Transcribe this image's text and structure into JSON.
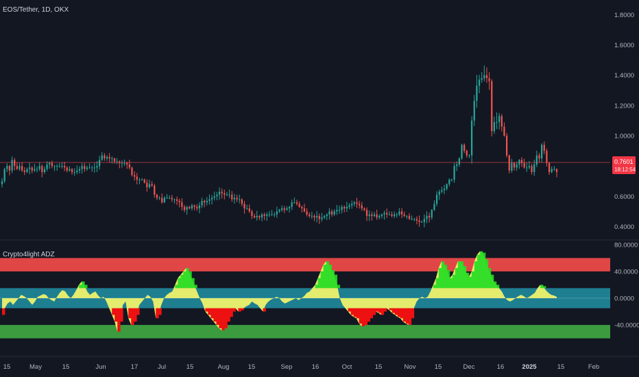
{
  "symbol": "EOS/Tether, 1D, OKX",
  "indicator_name": "Crypto4light ADZ",
  "last_price": {
    "value": "0.7601",
    "countdown": "18:12:54"
  },
  "colors": {
    "background": "#131722",
    "candle_up": "#26a69a",
    "candle_down": "#ef5350",
    "price_line": "#ef5350",
    "zone_red": "#e04646",
    "zone_teal": "#1e7f91",
    "zone_green": "#3c9b3f",
    "osc_yellow": "#eef26b",
    "osc_red": "#ee1111",
    "osc_green": "#22dd22"
  },
  "chart_data": [
    {
      "type": "candlestick",
      "title": "EOS/Tether, 1D, OKX",
      "y_ticks": [
        "1.8000",
        "1.6000",
        "1.4000",
        "1.2000",
        "1.0000",
        "0.8000",
        "0.6000",
        "0.4000"
      ],
      "ylim": [
        0.33,
        1.86
      ],
      "x_labels": [
        "15",
        "May",
        "15",
        "Jun",
        "17",
        "Jul",
        "15",
        "Aug",
        "15",
        "Sep",
        "16",
        "Oct",
        "15",
        "Nov",
        "15",
        "Dec",
        "16",
        "2025",
        "15",
        "Feb"
      ],
      "closes": [
        0.7,
        0.78,
        0.8,
        0.77,
        0.84,
        0.8,
        0.78,
        0.8,
        0.77,
        0.76,
        0.78,
        0.79,
        0.77,
        0.78,
        0.78,
        0.8,
        0.76,
        0.78,
        0.81,
        0.82,
        0.8,
        0.8,
        0.8,
        0.8,
        0.8,
        0.79,
        0.77,
        0.78,
        0.76,
        0.76,
        0.77,
        0.78,
        0.8,
        0.78,
        0.79,
        0.79,
        0.79,
        0.79,
        0.8,
        0.84,
        0.87,
        0.85,
        0.86,
        0.85,
        0.85,
        0.83,
        0.83,
        0.82,
        0.82,
        0.82,
        0.81,
        0.79,
        0.74,
        0.73,
        0.71,
        0.71,
        0.71,
        0.69,
        0.66,
        0.68,
        0.67,
        0.61,
        0.59,
        0.59,
        0.56,
        0.59,
        0.59,
        0.59,
        0.58,
        0.58,
        0.57,
        0.56,
        0.53,
        0.51,
        0.53,
        0.52,
        0.54,
        0.53,
        0.52,
        0.54,
        0.57,
        0.56,
        0.57,
        0.58,
        0.59,
        0.6,
        0.61,
        0.63,
        0.62,
        0.61,
        0.61,
        0.61,
        0.58,
        0.59,
        0.58,
        0.58,
        0.55,
        0.52,
        0.52,
        0.5,
        0.47,
        0.46,
        0.47,
        0.46,
        0.48,
        0.47,
        0.48,
        0.48,
        0.48,
        0.48,
        0.5,
        0.51,
        0.52,
        0.51,
        0.52,
        0.53,
        0.56,
        0.56,
        0.55,
        0.53,
        0.52,
        0.5,
        0.48,
        0.47,
        0.47,
        0.46,
        0.47,
        0.45,
        0.46,
        0.47,
        0.48,
        0.5,
        0.48,
        0.5,
        0.51,
        0.51,
        0.53,
        0.52,
        0.53,
        0.54,
        0.55,
        0.56,
        0.55,
        0.54,
        0.52,
        0.51,
        0.47,
        0.48,
        0.47,
        0.48,
        0.46,
        0.47,
        0.48,
        0.49,
        0.48,
        0.48,
        0.47,
        0.48,
        0.48,
        0.5,
        0.48,
        0.47,
        0.47,
        0.45,
        0.45,
        0.45,
        0.44,
        0.43,
        0.43,
        0.45,
        0.47,
        0.46,
        0.51,
        0.55,
        0.61,
        0.63,
        0.64,
        0.65,
        0.68,
        0.71,
        0.71,
        0.8,
        0.81,
        0.85,
        0.94,
        0.9,
        0.87,
        0.87,
        1.1,
        1.23,
        1.33,
        1.37,
        1.38,
        1.4,
        1.38,
        1.36,
        1.03,
        1.09,
        1.09,
        1.13,
        1.06,
        1.0,
        0.87,
        0.77,
        0.82,
        0.79,
        0.81,
        0.84,
        0.82,
        0.79,
        0.79,
        0.8,
        0.76,
        0.81,
        0.87,
        0.85,
        0.94,
        0.9,
        0.82,
        0.76,
        0.78,
        0.78,
        0.76
      ]
    },
    {
      "type": "area",
      "title": "Crypto4light ADZ",
      "y_ticks": [
        "80.0000",
        "40.0000",
        "0.0000",
        "-40.0000"
      ],
      "ylim": [
        -85,
        85
      ],
      "zones": [
        {
          "name": "red",
          "from": 40,
          "to": 60
        },
        {
          "name": "teal-upper",
          "from": 0,
          "to": 15
        },
        {
          "name": "teal-lower",
          "from": -15,
          "to": 0
        },
        {
          "name": "green",
          "from": -60,
          "to": -40
        }
      ],
      "values": [
        -25,
        -15,
        -8,
        -5,
        -10,
        -5,
        0,
        5,
        3,
        0,
        -5,
        -10,
        -5,
        2,
        4,
        6,
        5,
        0,
        -3,
        -5,
        2,
        8,
        12,
        10,
        4,
        0,
        5,
        12,
        20,
        25,
        20,
        10,
        5,
        8,
        10,
        4,
        0,
        2,
        -5,
        -15,
        -25,
        -35,
        -50,
        -35,
        -10,
        -5,
        -30,
        -40,
        -35,
        -25,
        -10,
        -5,
        0,
        5,
        2,
        -5,
        -30,
        -25,
        -10,
        0,
        5,
        8,
        10,
        20,
        30,
        35,
        40,
        45,
        40,
        30,
        20,
        10,
        0,
        -8,
        -20,
        -25,
        -30,
        -35,
        -40,
        -45,
        -48,
        -45,
        -35,
        -28,
        -20,
        -15,
        -20,
        -18,
        -15,
        -12,
        -10,
        -5,
        -8,
        -10,
        -15,
        -20,
        -10,
        -5,
        -2,
        0,
        2,
        0,
        -5,
        -8,
        -6,
        -4,
        -2,
        0,
        -3,
        0,
        3,
        8,
        10,
        15,
        20,
        30,
        40,
        50,
        55,
        50,
        42,
        35,
        20,
        0,
        -10,
        -15,
        -20,
        -25,
        -28,
        -30,
        -38,
        -42,
        -40,
        -35,
        -30,
        -25,
        -20,
        -22,
        -25,
        -20,
        -15,
        -18,
        -22,
        -25,
        -28,
        -30,
        -35,
        -38,
        -40,
        -30,
        -15,
        -5,
        0,
        2,
        0,
        2,
        10,
        20,
        30,
        45,
        55,
        50,
        42,
        30,
        35,
        45,
        55,
        55,
        48,
        38,
        32,
        40,
        55,
        65,
        70,
        68,
        58,
        45,
        35,
        25,
        20,
        15,
        10,
        2,
        -3,
        -5,
        -3,
        0,
        3,
        5,
        3,
        0,
        2,
        5,
        8,
        15,
        20,
        18,
        12,
        8,
        5,
        4,
        2
      ]
    }
  ]
}
